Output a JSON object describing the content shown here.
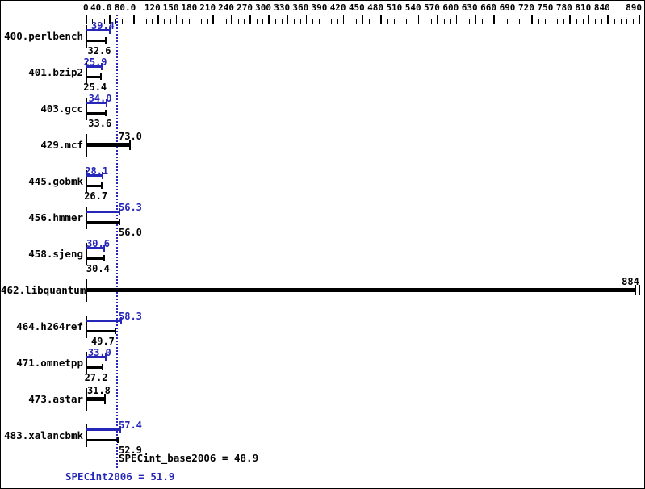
{
  "chart_data": {
    "type": "bar",
    "orientation": "horizontal",
    "title": "",
    "xlabel": "",
    "ylabel": "",
    "xlim": [
      0,
      890
    ],
    "grid": false,
    "legend_position": "none",
    "axis_ticks": [
      {
        "value": 0,
        "label": "0"
      },
      {
        "value": 40,
        "label": "40.0"
      },
      {
        "value": 80,
        "label": "80.0"
      },
      {
        "value": 120,
        "label": "120"
      },
      {
        "value": 150,
        "label": "150"
      },
      {
        "value": 180,
        "label": "180"
      },
      {
        "value": 210,
        "label": "210"
      },
      {
        "value": 240,
        "label": "240"
      },
      {
        "value": 270,
        "label": "270"
      },
      {
        "value": 300,
        "label": "300"
      },
      {
        "value": 330,
        "label": "330"
      },
      {
        "value": 360,
        "label": "360"
      },
      {
        "value": 390,
        "label": "390"
      },
      {
        "value": 420,
        "label": "420"
      },
      {
        "value": 450,
        "label": "450"
      },
      {
        "value": 480,
        "label": "480"
      },
      {
        "value": 510,
        "label": "510"
      },
      {
        "value": 540,
        "label": "540"
      },
      {
        "value": 570,
        "label": "570"
      },
      {
        "value": 600,
        "label": "600"
      },
      {
        "value": 630,
        "label": "630"
      },
      {
        "value": 660,
        "label": "660"
      },
      {
        "value": 690,
        "label": "690"
      },
      {
        "value": 720,
        "label": "720"
      },
      {
        "value": 750,
        "label": "750"
      },
      {
        "value": 780,
        "label": "780"
      },
      {
        "value": 810,
        "label": "810"
      },
      {
        "value": 840,
        "label": "840"
      },
      {
        "value": 890,
        "label": "890"
      }
    ],
    "minor_tick_step": 10,
    "benchmarks": [
      {
        "name": "400.perlbench",
        "single": false,
        "peak": 39.4,
        "base": 32.6,
        "peak_text": "39.4",
        "base_text": "32.6"
      },
      {
        "name": "401.bzip2",
        "single": false,
        "peak": 25.9,
        "base": 25.4,
        "peak_text": "25.9",
        "base_text": "25.4"
      },
      {
        "name": "403.gcc",
        "single": false,
        "peak": 34.0,
        "base": 33.6,
        "peak_text": "34.0",
        "base_text": "33.6"
      },
      {
        "name": "429.mcf",
        "single": true,
        "peak": 73.0,
        "base": 73.0,
        "value_text": "73.0"
      },
      {
        "name": "445.gobmk",
        "single": false,
        "peak": 28.1,
        "base": 26.7,
        "peak_text": "28.1",
        "base_text": "26.7"
      },
      {
        "name": "456.hmmer",
        "single": false,
        "peak": 56.3,
        "base": 56.0,
        "peak_text": "56.3",
        "base_text": "56.0"
      },
      {
        "name": "458.sjeng",
        "single": false,
        "peak": 30.6,
        "base": 30.4,
        "peak_text": "30.6",
        "base_text": "30.4"
      },
      {
        "name": "462.libquantum",
        "single": true,
        "peak": 884,
        "base": 884,
        "value_text": "884"
      },
      {
        "name": "464.h264ref",
        "single": false,
        "peak": 58.3,
        "base": 49.7,
        "peak_text": "58.3",
        "base_text": "49.7"
      },
      {
        "name": "471.omnetpp",
        "single": false,
        "peak": 33.0,
        "base": 27.2,
        "peak_text": "33.0",
        "base_text": "27.2"
      },
      {
        "name": "473.astar",
        "single": true,
        "peak": 31.8,
        "base": 31.8,
        "value_text": "31.8"
      },
      {
        "name": "483.xalancbmk",
        "single": false,
        "peak": 57.4,
        "base": 52.9,
        "peak_text": "57.4",
        "base_text": "52.9"
      }
    ],
    "means": {
      "base": {
        "value": 48.9,
        "text": "SPECint_base2006 = 48.9"
      },
      "peak": {
        "value": 51.9,
        "text": "SPECint2006 = 51.9"
      }
    },
    "colors": {
      "peak_blue": "#2626b8",
      "base_black": "#000000",
      "background": "#ffffff"
    }
  }
}
